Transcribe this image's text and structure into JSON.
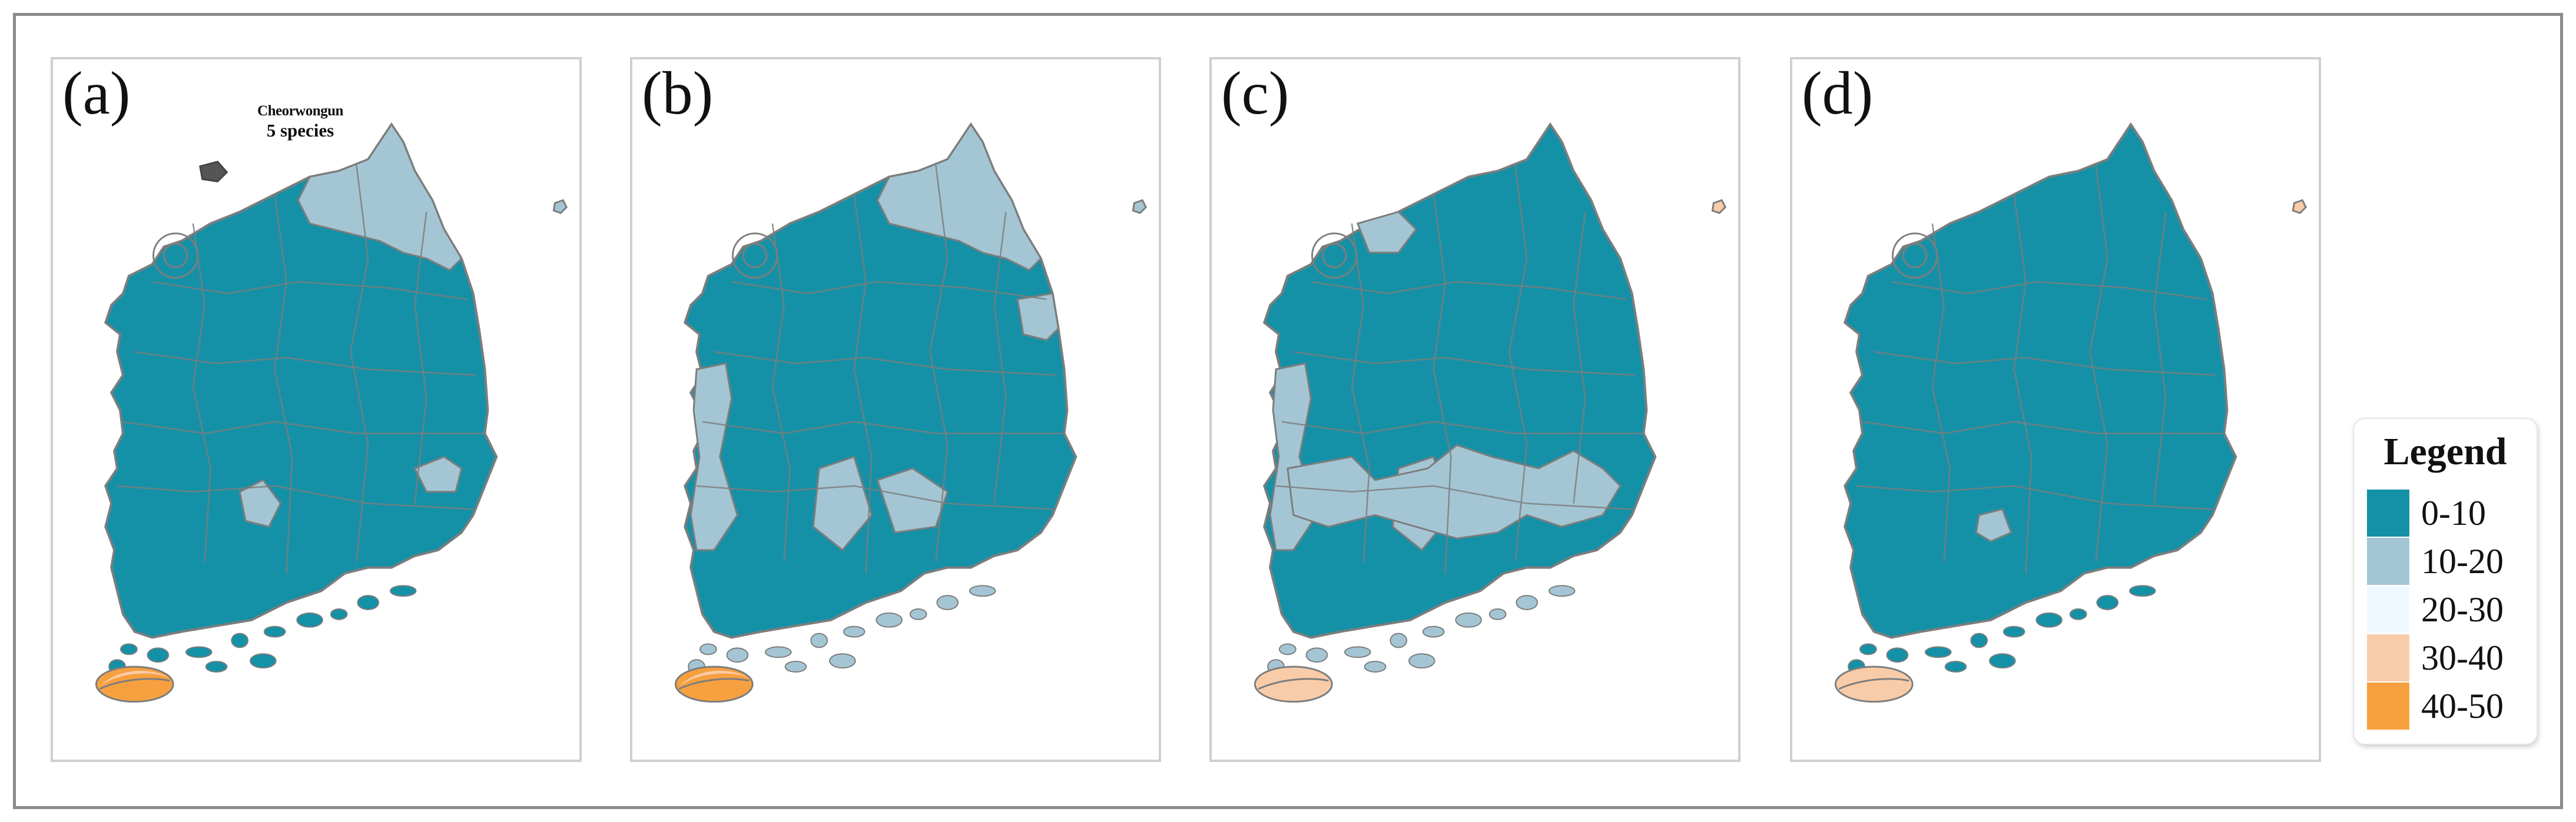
{
  "colors": {
    "c0_10": "#1591a7",
    "c10_20": "#a4c6d4",
    "c20_30": "#eefaff",
    "c30_40": "#f9cca9",
    "c40_50": "#f7a040",
    "border": "#7d7d7d",
    "panel_border": "#cfcfcf"
  },
  "panels": [
    {
      "label": "(a)",
      "island_class": "c10_20",
      "jeju_class": "c40_50",
      "jeju_inner": "c30_40",
      "zones": [
        "ne",
        "se"
      ]
    },
    {
      "label": "(b)",
      "island_class": "c10_20",
      "jeju_class": "c40_50",
      "jeju_inner": "c30_40",
      "zones": [
        "ne",
        "east",
        "sw",
        "south"
      ]
    },
    {
      "label": "(c)",
      "island_class": "c30_40",
      "jeju_class": "c30_40",
      "jeju_inner": "c30_40",
      "zones": [
        "north_w",
        "sw",
        "south_band"
      ]
    },
    {
      "label": "(d)",
      "island_class": "c30_40",
      "jeju_class": "c30_40",
      "jeju_inner": "c30_40",
      "zones": [
        "small_s"
      ]
    }
  ],
  "callout": {
    "region": "Cheorwongun",
    "count": "5 species"
  },
  "legend": {
    "title": "Legend",
    "items": [
      {
        "label": "0-10",
        "color": "#1591a7"
      },
      {
        "label": "10-20",
        "color": "#a4c6d4"
      },
      {
        "label": "20-30",
        "color": "#eefaff"
      },
      {
        "label": "30-40",
        "color": "#f9cca9"
      },
      {
        "label": "40-50",
        "color": "#f7a040"
      }
    ]
  }
}
